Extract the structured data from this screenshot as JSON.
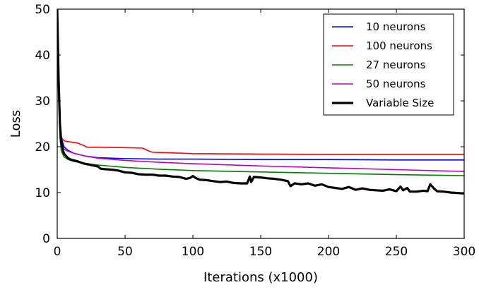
{
  "chart_data": {
    "type": "line",
    "title": "",
    "xlabel": "Iterations (x1000)",
    "ylabel": "Loss",
    "xlim": [
      0,
      300
    ],
    "ylim": [
      0,
      50
    ],
    "xticks": [
      0,
      50,
      100,
      150,
      200,
      250,
      300
    ],
    "yticks": [
      0,
      10,
      20,
      30,
      40,
      50
    ],
    "grid": false,
    "legend_position": "top-right",
    "series": [
      {
        "name": "10 neurons",
        "color": "#0000ff",
        "x": [
          0,
          1,
          2,
          3,
          5,
          8,
          12,
          20,
          30,
          50,
          75,
          100,
          150,
          200,
          250,
          300
        ],
        "y": [
          49,
          35,
          25,
          22,
          20,
          19.2,
          18.6,
          18,
          17.6,
          17.4,
          17.3,
          17.3,
          17.2,
          17.2,
          17.1,
          17.1
        ]
      },
      {
        "name": "100 neurons",
        "color": "#ff0000",
        "x": [
          0,
          1,
          2,
          3,
          5,
          8,
          15,
          20,
          22,
          30,
          50,
          63,
          68,
          70,
          80,
          100,
          150,
          200,
          250,
          300
        ],
        "y": [
          49,
          32,
          25,
          22,
          21.3,
          21.1,
          20.8,
          20.2,
          19.9,
          19.9,
          19.8,
          19.7,
          19.0,
          18.8,
          18.7,
          18.5,
          18.4,
          18.3,
          18.3,
          18.3
        ]
      },
      {
        "name": "27 neurons",
        "color": "#008000",
        "x": [
          0,
          1,
          2,
          3,
          5,
          8,
          12,
          20,
          30,
          50,
          75,
          100,
          150,
          200,
          250,
          300
        ],
        "y": [
          49,
          32,
          22,
          19,
          17.8,
          17.2,
          16.8,
          16.4,
          16.0,
          15.5,
          15.1,
          14.8,
          14.5,
          14.2,
          13.9,
          13.7
        ]
      },
      {
        "name": "50 neurons",
        "color": "#bf00bf",
        "x": [
          0,
          1,
          2,
          3,
          5,
          8,
          12,
          20,
          30,
          50,
          75,
          100,
          150,
          200,
          250,
          300
        ],
        "y": [
          49,
          33,
          24,
          21,
          19.5,
          19.0,
          18.6,
          18.0,
          17.5,
          17.0,
          16.6,
          16.3,
          15.8,
          15.4,
          15.0,
          14.6
        ]
      },
      {
        "name": "Variable Size",
        "color": "#000000",
        "x": [
          0,
          1,
          2,
          3,
          4,
          5,
          8,
          10,
          15,
          20,
          25,
          30,
          32,
          35,
          40,
          45,
          50,
          55,
          60,
          65,
          70,
          75,
          80,
          85,
          90,
          95,
          98,
          100,
          102,
          105,
          110,
          115,
          120,
          125,
          130,
          135,
          140,
          142,
          143,
          145,
          150,
          155,
          160,
          165,
          170,
          172,
          175,
          180,
          185,
          190,
          195,
          200,
          205,
          210,
          215,
          220,
          225,
          230,
          235,
          240,
          245,
          250,
          253,
          255,
          258,
          260,
          265,
          270,
          273,
          275,
          278,
          280,
          285,
          290,
          295,
          300
        ],
        "y": [
          50,
          35,
          25,
          21,
          19.5,
          18.5,
          17.5,
          17.2,
          16.8,
          16.3,
          16.0,
          15.7,
          15.2,
          15.1,
          15.0,
          14.8,
          14.4,
          14.3,
          14.0,
          13.9,
          13.9,
          13.7,
          13.7,
          13.5,
          13.4,
          13.0,
          13.2,
          13.6,
          13.2,
          12.8,
          12.7,
          12.5,
          12.3,
          12.4,
          12.1,
          12.0,
          12.0,
          13.5,
          12.3,
          13.4,
          13.3,
          13.1,
          13.0,
          12.8,
          12.5,
          11.4,
          12.0,
          11.8,
          12.0,
          11.5,
          11.8,
          11.2,
          11.0,
          10.8,
          11.2,
          10.6,
          10.9,
          10.6,
          10.5,
          10.4,
          10.7,
          10.3,
          11.3,
          10.5,
          11.0,
          10.2,
          10.2,
          10.4,
          10.3,
          11.8,
          10.8,
          10.3,
          10.2,
          10.0,
          9.9,
          9.8
        ]
      }
    ]
  }
}
